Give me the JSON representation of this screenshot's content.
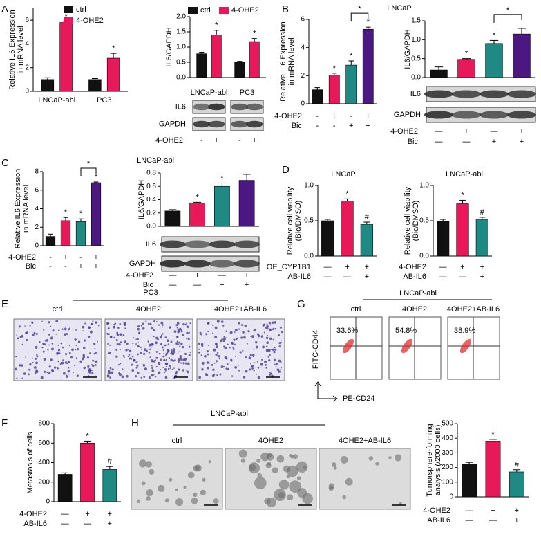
{
  "panel_labels": [
    "A",
    "B",
    "C",
    "D",
    "E",
    "G",
    "F",
    "H"
  ],
  "chart_data": [
    {
      "type": "bar",
      "y_label": [
        "Relative IL6 Expression",
        "in mRNA level"
      ],
      "categories": [
        "LNCaP-abl",
        "PC3"
      ],
      "series": [
        {
          "name": "ctrl",
          "color": "#111111",
          "values": [
            1.0,
            1.0
          ],
          "errors": [
            0.15,
            0.08
          ],
          "annotations": [
            null,
            null
          ]
        },
        {
          "name": "4-OHE2",
          "color": "#e8195a",
          "values": [
            5.8,
            2.8
          ],
          "errors": [
            0.1,
            0.4
          ],
          "annotations": [
            "*",
            "*"
          ]
        }
      ],
      "ylim": [
        0,
        7
      ],
      "yticks": [
        0,
        2,
        4,
        6
      ],
      "legend": true
    },
    {
      "type": "bar",
      "y_label": [
        "IL6/GAPDH"
      ],
      "categories": [
        "LNCaP-abl",
        "PC3"
      ],
      "series": [
        {
          "name": "ctrl",
          "color": "#111111",
          "values": [
            0.78,
            0.5
          ],
          "errors": [
            0.05,
            0.03
          ],
          "annotations": [
            null,
            null
          ]
        },
        {
          "name": "4-OHE2",
          "color": "#e8195a",
          "values": [
            1.4,
            1.18
          ],
          "errors": [
            0.15,
            0.1
          ],
          "annotations": [
            "*",
            "*"
          ]
        }
      ],
      "ylim": [
        0,
        2
      ],
      "yticks": [
        {
          "value": 0,
          "label": "0.0"
        },
        0.5,
        {
          "value": 1,
          "label": "1.0"
        },
        1.5,
        {
          "value": 2,
          "label": "2.0"
        }
      ],
      "legend": true,
      "blot": [
        "IL6",
        "GAPDH"
      ],
      "conditions": [
        {
          "name": "4-OHE2",
          "signs": [
            "-",
            "+",
            "-",
            "+"
          ]
        }
      ]
    },
    {
      "type": "bar",
      "title": "LNCaP",
      "y_label": [
        "Relative IL6 Expression",
        "in mRNA level"
      ],
      "categories": [
        null,
        null,
        null,
        null
      ],
      "series": [
        {
          "values": [
            1.0,
            2.05,
            2.75,
            5.3
          ],
          "errors": [
            0.15,
            0.12,
            0.3,
            0.15
          ],
          "colors": [
            "#111111",
            "#e8195a",
            "#1f8a84",
            "#4b1780"
          ],
          "annotations": [
            null,
            "*",
            "*",
            "*"
          ]
        }
      ],
      "ylim": [
        0,
        6
      ],
      "yticks": [
        0,
        2,
        4,
        6
      ],
      "brackets": [
        {
          "from": 2,
          "to": 3,
          "label": "*"
        }
      ],
      "conditions": [
        {
          "name": "4-OHE2",
          "signs": [
            "-",
            "+",
            "-",
            "+"
          ]
        },
        {
          "name": "Bic",
          "signs": [
            "-",
            "-",
            "+",
            "+"
          ]
        }
      ]
    },
    {
      "type": "bar",
      "y_label": [
        "IL6/GAPDH"
      ],
      "categories": [
        null,
        null,
        null,
        null
      ],
      "series": [
        {
          "values": [
            0.2,
            0.48,
            0.9,
            1.15
          ],
          "errors": [
            0.08,
            0.02,
            0.08,
            0.15
          ],
          "colors": [
            "#111111",
            "#e8195a",
            "#1f8a84",
            "#4b1780"
          ],
          "annotations": [
            null,
            "*",
            "*",
            null
          ]
        }
      ],
      "ylim": [
        0,
        1.5
      ],
      "yticks": [
        {
          "value": 0,
          "label": "0.0"
        },
        0.5,
        {
          "value": 1,
          "label": "1.0"
        },
        1.5
      ],
      "brackets": [
        {
          "from": 2,
          "to": 3,
          "label": "*"
        }
      ],
      "blot": [
        "IL6",
        "GAPDH"
      ],
      "conditions": [
        {
          "name": "4-OHE2",
          "signs": [
            "—",
            "+",
            "—",
            "+"
          ]
        },
        {
          "name": "Bic",
          "signs": [
            "—",
            "—",
            "+",
            "+"
          ]
        }
      ]
    },
    {
      "type": "bar",
      "title": "LNCaP-abl",
      "y_label": [
        "Relative IL6 Expression",
        "in mRNA level"
      ],
      "categories": [
        null,
        null,
        null,
        null
      ],
      "series": [
        {
          "values": [
            1.0,
            2.7,
            2.6,
            6.8
          ],
          "errors": [
            0.25,
            0.35,
            0.3,
            0.08
          ],
          "colors": [
            "#111111",
            "#e8195a",
            "#1f8a84",
            "#4b1780"
          ],
          "annotations": [
            null,
            "*",
            "*",
            "*"
          ]
        }
      ],
      "ylim": [
        0,
        8
      ],
      "yticks": [
        0,
        2,
        4,
        6,
        8
      ],
      "brackets": [
        {
          "from": 2,
          "to": 3,
          "label": "*"
        }
      ],
      "conditions": [
        {
          "name": "4-OHE2",
          "signs": [
            "-",
            "+",
            "-",
            "+"
          ]
        },
        {
          "name": "Bic",
          "signs": [
            "-",
            "-",
            "+",
            "+"
          ]
        }
      ]
    },
    {
      "type": "bar",
      "y_label": [
        "IL6/GAPDH"
      ],
      "categories": [
        null,
        null,
        null,
        null
      ],
      "series": [
        {
          "values": [
            0.23,
            0.35,
            0.6,
            0.69
          ],
          "errors": [
            0.02,
            0.01,
            0.05,
            0.09
          ],
          "colors": [
            "#111111",
            "#e8195a",
            "#1f8a84",
            "#4b1780"
          ],
          "annotations": [
            null,
            "*",
            "*",
            null
          ]
        }
      ],
      "ylim": [
        0,
        0.8
      ],
      "yticks": [
        {
          "value": 0,
          "label": "0.0"
        },
        0.2,
        0.4,
        0.6,
        0.8
      ],
      "blot": [
        "IL6",
        "GAPDH"
      ],
      "conditions": [
        {
          "name": "4-OHE2",
          "signs": [
            "—",
            "+",
            "—",
            "+"
          ]
        },
        {
          "name": "Bic",
          "signs": [
            "—",
            "—",
            "+",
            "+"
          ]
        }
      ]
    },
    {
      "type": "bar",
      "title": "LNCaP",
      "y_label": [
        "Relative cell viability",
        "(Bic/DMSO)"
      ],
      "categories": [
        null,
        null,
        null
      ],
      "series": [
        {
          "values": [
            0.5,
            0.78,
            0.45
          ],
          "errors": [
            0.02,
            0.03,
            0.03
          ],
          "colors": [
            "#111111",
            "#e8195a",
            "#1f8a84"
          ],
          "annotations": [
            null,
            "*",
            "#"
          ]
        }
      ],
      "ylim": [
        0,
        1
      ],
      "yticks": [
        {
          "value": 0,
          "label": "0.0"
        },
        0.5,
        {
          "value": 1,
          "label": "1.0"
        }
      ],
      "conditions": [
        {
          "name": "OE_CYP1B1",
          "signs": [
            "—",
            "+",
            "+"
          ]
        },
        {
          "name": "AB-IL6",
          "signs": [
            "—",
            "—",
            "+"
          ]
        }
      ]
    },
    {
      "type": "bar",
      "title": "LNCaP-abl",
      "y_label": [
        "Relative cell viability",
        "(Bic/DMSO)"
      ],
      "categories": [
        null,
        null,
        null
      ],
      "series": [
        {
          "values": [
            0.49,
            0.74,
            0.52
          ],
          "errors": [
            0.03,
            0.05,
            0.03
          ],
          "colors": [
            "#111111",
            "#e8195a",
            "#1f8a84"
          ],
          "annotations": [
            null,
            "*",
            "#"
          ]
        }
      ],
      "ylim": [
        0,
        1
      ],
      "yticks": [
        {
          "value": 0,
          "label": "0.0"
        },
        0.5,
        {
          "value": 1,
          "label": "1.0"
        }
      ],
      "conditions": [
        {
          "name": "4-OHE2",
          "signs": [
            "—",
            "+",
            "+"
          ]
        },
        {
          "name": "AB-IL6",
          "signs": [
            "—",
            "—",
            "+"
          ]
        }
      ]
    },
    {
      "type": "bar",
      "y_label": [
        "Metastasis of cells"
      ],
      "categories": [
        null,
        null,
        null
      ],
      "series": [
        {
          "values": [
            280,
            600,
            330
          ],
          "errors": [
            15,
            20,
            30
          ],
          "colors": [
            "#111111",
            "#e8195a",
            "#1f8a84"
          ],
          "annotations": [
            null,
            "*",
            "#"
          ]
        }
      ],
      "ylim": [
        0,
        800
      ],
      "yticks": [
        0,
        200,
        400,
        600,
        800
      ],
      "conditions": [
        {
          "name": "4-OHE2",
          "signs": [
            "—",
            "+",
            "+"
          ]
        },
        {
          "name": "AB-IL6",
          "signs": [
            "—",
            "—",
            "+"
          ]
        }
      ]
    },
    {
      "type": "bar",
      "y_label": [
        "Tumorsphere-forming",
        "analysis (/2000 cells)"
      ],
      "categories": [
        null,
        null,
        null
      ],
      "series": [
        {
          "values": [
            225,
            380,
            170
          ],
          "errors": [
            10,
            12,
            15
          ],
          "colors": [
            "#111111",
            "#e8195a",
            "#1f8a84"
          ],
          "annotations": [
            null,
            "*",
            "#"
          ]
        }
      ],
      "ylim": [
        0,
        500
      ],
      "yticks": [
        0,
        100,
        200,
        300,
        400,
        500
      ],
      "conditions": [
        {
          "name": "4-OHE2",
          "signs": [
            "—",
            "+",
            "+"
          ]
        },
        {
          "name": "AB-IL6",
          "signs": [
            "—",
            "—",
            "+"
          ]
        }
      ]
    }
  ],
  "panel_e": {
    "title": "PC3",
    "labels": [
      "ctrl",
      "4OHE2",
      "4OHE2+AB-IL6"
    ]
  },
  "panel_g": {
    "title": "LNCaP-abl",
    "labels": [
      "ctrl",
      "4OHE2",
      "4OHE2+AB-IL6"
    ],
    "percentages": [
      "33.6%",
      "54.8%",
      "38.9%"
    ],
    "y_axis": "FITC-CD44",
    "x_axis": "PE-CD24"
  },
  "panel_h": {
    "title": "LNCaP-abl",
    "labels": [
      "ctrl",
      "4OHE2",
      "4OHE2+AB-IL6"
    ]
  }
}
